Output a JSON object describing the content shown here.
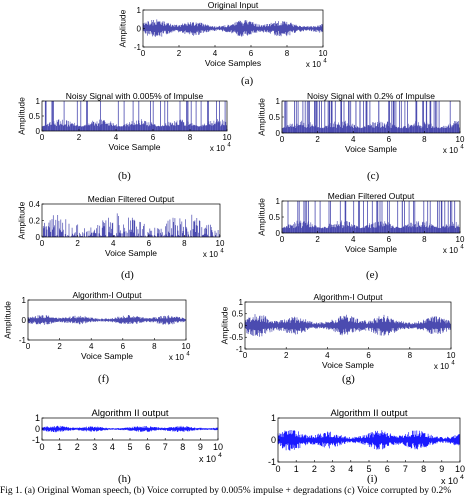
{
  "figure": {
    "caption": "Fig 1. (a) Original Woman speech, (b) Voice corrupted by 0.005% impulse + degradations (c) Voice corrupted by 0.2%"
  },
  "signal_color": "#4b4bb0",
  "signal_color_bright": "#1a1aff",
  "chart_data": [
    {
      "id": "a",
      "label": "(a)",
      "type": "line",
      "title": "Original Input",
      "xlabel": "Voice Samples",
      "ylabel": "Amplitude",
      "xlim": [
        0,
        100000
      ],
      "ylim": [
        -1,
        1
      ],
      "xticks": [
        "0",
        "2",
        "4",
        "6",
        "8",
        "10"
      ],
      "yticks": [
        "1",
        "0",
        "-1"
      ],
      "xmultiplier": "x 10",
      "xexp": "4",
      "signal": "speech",
      "amplitude": 0.55
    },
    {
      "id": "b",
      "label": "(b)",
      "type": "line",
      "title": "Noisy Signal with 0.005% of Impulse",
      "xlabel": "Voice Sample",
      "ylabel": "Amplitude",
      "xlim": [
        0,
        100000
      ],
      "ylim": [
        0,
        1
      ],
      "xticks": [
        "0",
        "2",
        "4",
        "6",
        "8",
        "10"
      ],
      "yticks": [
        "1",
        "0.5",
        "0"
      ],
      "xmultiplier": "x 10",
      "xexp": "4",
      "signal": "impulse",
      "amplitude": 1.0,
      "impulse_density": 0.35
    },
    {
      "id": "c",
      "label": "(c)",
      "type": "line",
      "title": "Noisy Signal with 0.2% of Impulse",
      "xlabel": "Voice Sample",
      "ylabel": "Amplitude",
      "xlim": [
        0,
        100000
      ],
      "ylim": [
        0,
        1
      ],
      "xticks": [
        "0",
        "2",
        "4",
        "6",
        "8",
        "10"
      ],
      "yticks": [
        "1",
        "0.5",
        "0"
      ],
      "xmultiplier": "x 10",
      "xexp": "4",
      "signal": "impulse",
      "amplitude": 1.0,
      "impulse_density": 0.85
    },
    {
      "id": "d",
      "label": "(d)",
      "type": "line",
      "title": "Median Filtered Output",
      "xlabel": "Voice Sample",
      "ylabel": "Amplitude",
      "xlim": [
        0,
        100000
      ],
      "ylim": [
        0,
        0.4
      ],
      "xticks": [
        "0",
        "2",
        "4",
        "6",
        "8",
        "10"
      ],
      "yticks": [
        "0.4",
        "0.2",
        "0"
      ],
      "xmultiplier": "x 10",
      "xexp": "4",
      "signal": "positive",
      "amplitude": 0.3
    },
    {
      "id": "e",
      "label": "(e)",
      "type": "line",
      "title": "Median Filtered Output",
      "xlabel": "Voice Sample",
      "ylabel": "Amplitude",
      "xlim": [
        0,
        100000
      ],
      "ylim": [
        0,
        1
      ],
      "xticks": [
        "0",
        "2",
        "4",
        "6",
        "8",
        "10"
      ],
      "yticks": [
        "1",
        "0.5",
        "0"
      ],
      "xmultiplier": "x 10",
      "xexp": "4",
      "signal": "impulse",
      "amplitude": 1.0,
      "impulse_density": 0.55
    },
    {
      "id": "f",
      "label": "(f)",
      "type": "line",
      "title": "Algorithm-I Output",
      "xlabel": "Voice Sample",
      "ylabel": "Amplitude",
      "xlim": [
        0,
        100000
      ],
      "ylim": [
        -1,
        1
      ],
      "xticks": [
        "0",
        "2",
        "4",
        "6",
        "8",
        "10"
      ],
      "yticks": [
        "1",
        "0",
        "-1"
      ],
      "xmultiplier": "x 10",
      "xexp": "4",
      "signal": "speech",
      "amplitude": 0.3
    },
    {
      "id": "g",
      "label": "(g)",
      "type": "line",
      "title": "Algorithm-I Output",
      "xlabel": "Voice Sample",
      "ylabel": "Amplitude",
      "xlim": [
        0,
        100000
      ],
      "ylim": [
        -1,
        1
      ],
      "xticks": [
        "0",
        "2",
        "4",
        "6",
        "8",
        "10"
      ],
      "yticks": [
        "1",
        "0.5",
        "0",
        "-0.5",
        "-1"
      ],
      "xmultiplier": "x 10",
      "xexp": "4",
      "signal": "speech",
      "amplitude": 0.55
    },
    {
      "id": "h",
      "label": "(h)",
      "type": "line",
      "title": "Algorithm II output",
      "xlabel": "",
      "ylabel": "",
      "xlim": [
        0,
        100000
      ],
      "ylim": [
        -1,
        1
      ],
      "xticks": [
        "0",
        "1",
        "2",
        "3",
        "4",
        "5",
        "6",
        "7",
        "8",
        "9",
        "10"
      ],
      "yticks": [
        "1",
        "0",
        "-1"
      ],
      "xmultiplier": "x 10",
      "xexp": "4",
      "signal": "speech",
      "amplitude": 0.35,
      "bright": true
    },
    {
      "id": "i",
      "label": "(i)",
      "type": "line",
      "title": "Algorithm II output",
      "xlabel": "",
      "ylabel": "",
      "xlim": [
        0,
        100000
      ],
      "ylim": [
        -1,
        1
      ],
      "xticks": [
        "0",
        "1",
        "2",
        "3",
        "4",
        "5",
        "6",
        "7",
        "8",
        "9",
        "10"
      ],
      "yticks": [
        "1",
        "0",
        "-1"
      ],
      "xmultiplier": "x 10",
      "xexp": "4",
      "signal": "speech",
      "amplitude": 0.55,
      "bright": true
    }
  ]
}
